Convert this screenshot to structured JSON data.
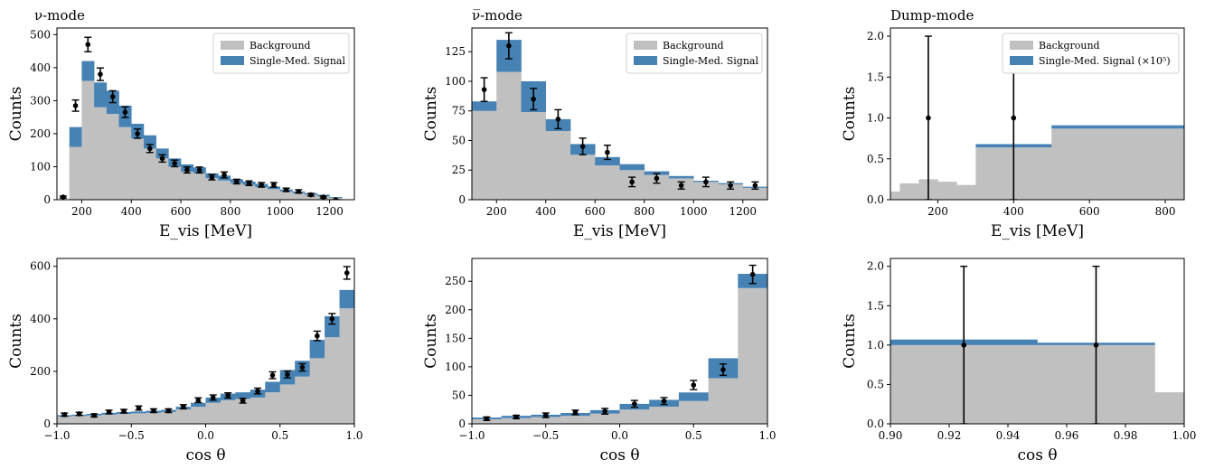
{
  "colors": {
    "background": "#c0c0c0",
    "signal": "#4682b4",
    "data": "#000000"
  },
  "legend": {
    "background": "Background",
    "signal": "Single-Med. Signal",
    "signal_dump": "Single-Med. Signal (×10⁵)"
  },
  "chart_data": [
    {
      "type": "bar",
      "title": "ν-mode",
      "xlabel": "E_vis [MeV]",
      "ylabel": "Counts",
      "xlim": [
        100,
        1300
      ],
      "ylim": [
        0,
        520
      ],
      "xticks": [
        200,
        400,
        600,
        800,
        1000,
        1200
      ],
      "yticks": [
        0,
        100,
        200,
        300,
        400,
        500
      ],
      "legend": "top-right",
      "legend_entries": [
        "Background",
        "Single-Med. Signal"
      ],
      "bin_edges": [
        150,
        200,
        250,
        300,
        350,
        400,
        450,
        500,
        550,
        600,
        650,
        700,
        750,
        800,
        850,
        900,
        950,
        1000,
        1050,
        1100,
        1150,
        1200,
        1250,
        1300
      ],
      "background": [
        160,
        360,
        280,
        260,
        220,
        185,
        155,
        125,
        100,
        85,
        80,
        65,
        58,
        50,
        45,
        38,
        32,
        25,
        20,
        15,
        10,
        5,
        0
      ],
      "signal": [
        60,
        60,
        75,
        70,
        65,
        45,
        40,
        30,
        25,
        22,
        18,
        15,
        15,
        12,
        10,
        10,
        8,
        6,
        5,
        5,
        5,
        3,
        0
      ],
      "data_x": [
        125,
        175,
        225,
        275,
        325,
        375,
        425,
        475,
        525,
        575,
        625,
        675,
        725,
        775,
        825,
        875,
        925,
        975,
        1025,
        1075,
        1125,
        1175,
        1225
      ],
      "data_y": [
        8,
        285,
        470,
        380,
        312,
        265,
        200,
        155,
        125,
        110,
        90,
        90,
        68,
        75,
        55,
        50,
        45,
        45,
        30,
        25,
        15,
        8,
        0
      ],
      "data_err": [
        3,
        17,
        22,
        19,
        18,
        16,
        14,
        12,
        11,
        10,
        9,
        9,
        8,
        9,
        7,
        7,
        7,
        7,
        5,
        5,
        4,
        3,
        0
      ]
    },
    {
      "type": "bar",
      "title": "ν̅-mode",
      "xlabel": "E_vis [MeV]",
      "ylabel": "Counts",
      "xlim": [
        100,
        1300
      ],
      "ylim": [
        0,
        145
      ],
      "xticks": [
        200,
        400,
        600,
        800,
        1000,
        1200
      ],
      "yticks": [
        0,
        25,
        50,
        75,
        100,
        125
      ],
      "legend": "top-right",
      "legend_entries": [
        "Background",
        "Single-Med. Signal"
      ],
      "bin_edges": [
        100,
        200,
        300,
        400,
        500,
        600,
        700,
        800,
        900,
        1000,
        1100,
        1200,
        1300
      ],
      "background": [
        75,
        108,
        74,
        58,
        38,
        29,
        25,
        21,
        18,
        15,
        13,
        10
      ],
      "signal": [
        8,
        27,
        26,
        10,
        9,
        7,
        5,
        3,
        2,
        1,
        1,
        1
      ],
      "data_x": [
        150,
        250,
        350,
        450,
        550,
        650,
        750,
        850,
        950,
        1050,
        1150,
        1250
      ],
      "data_y": [
        93,
        130,
        85,
        68,
        45,
        40,
        15,
        18,
        12,
        15,
        12,
        12
      ],
      "data_err": [
        10,
        11,
        9,
        8,
        7,
        6,
        4,
        4,
        3,
        4,
        3,
        3
      ]
    },
    {
      "type": "bar",
      "title": "Dump-mode",
      "xlabel": "E_vis [MeV]",
      "ylabel": "Counts",
      "xlim": [
        75,
        850
      ],
      "ylim": [
        0,
        2.1
      ],
      "xticks": [
        200,
        400,
        600,
        800
      ],
      "yticks": [
        0.0,
        0.5,
        1.0,
        1.5,
        2.0
      ],
      "legend": "top-right",
      "legend_entries": [
        "Background",
        "Single-Med. Signal (×10⁵)"
      ],
      "bin_edges": [
        75,
        100,
        150,
        200,
        250,
        300,
        500,
        850
      ],
      "background": [
        0.1,
        0.2,
        0.25,
        0.22,
        0.18,
        0.64,
        0.87
      ],
      "signal": [
        0,
        0,
        0,
        0,
        0,
        0.04,
        0.04
      ],
      "data_x": [
        175,
        400
      ],
      "data_y": [
        1.0,
        1.0
      ],
      "data_err_low": [
        1.0,
        1.0
      ],
      "data_err_high": [
        1.0,
        1.0
      ]
    },
    {
      "type": "bar",
      "xlabel": "cos θ",
      "ylabel": "Counts",
      "xlim": [
        -1.0,
        1.0
      ],
      "ylim": [
        0,
        630
      ],
      "xticks": [
        -1.0,
        -0.5,
        0.0,
        0.5,
        1.0
      ],
      "yticks": [
        0,
        200,
        400,
        600
      ],
      "bin_edges": [
        -1.0,
        -0.9,
        -0.8,
        -0.7,
        -0.6,
        -0.5,
        -0.4,
        -0.3,
        -0.2,
        -0.1,
        0.0,
        0.1,
        0.2,
        0.3,
        0.4,
        0.5,
        0.6,
        0.7,
        0.8,
        0.9,
        1.0
      ],
      "background": [
        28,
        30,
        32,
        35,
        38,
        40,
        42,
        45,
        55,
        65,
        80,
        90,
        95,
        100,
        120,
        150,
        180,
        250,
        330,
        440
      ],
      "signal": [
        5,
        5,
        6,
        7,
        7,
        7,
        8,
        8,
        10,
        15,
        20,
        25,
        25,
        30,
        40,
        55,
        60,
        70,
        80,
        70
      ],
      "data_x": [
        -0.95,
        -0.85,
        -0.75,
        -0.65,
        -0.55,
        -0.45,
        -0.35,
        -0.25,
        -0.15,
        -0.05,
        0.05,
        0.15,
        0.25,
        0.35,
        0.45,
        0.55,
        0.65,
        0.75,
        0.85,
        0.95
      ],
      "data_y": [
        35,
        38,
        32,
        45,
        48,
        60,
        50,
        50,
        65,
        90,
        100,
        108,
        88,
        125,
        185,
        188,
        215,
        335,
        400,
        575
      ],
      "data_err": [
        6,
        6,
        6,
        7,
        7,
        8,
        7,
        7,
        8,
        9,
        10,
        10,
        9,
        11,
        13,
        13,
        14,
        18,
        20,
        24
      ]
    },
    {
      "type": "bar",
      "xlabel": "cos θ",
      "ylabel": "Counts",
      "xlim": [
        -1.0,
        1.0
      ],
      "ylim": [
        0,
        290
      ],
      "xticks": [
        -1.0,
        -0.5,
        0.0,
        0.5,
        1.0
      ],
      "yticks": [
        0,
        50,
        100,
        150,
        200,
        250
      ],
      "bin_edges": [
        -1.0,
        -0.8,
        -0.6,
        -0.4,
        -0.2,
        0.0,
        0.2,
        0.4,
        0.6,
        0.8,
        1.0
      ],
      "background": [
        8,
        10,
        12,
        14,
        18,
        25,
        30,
        40,
        80,
        238
      ],
      "signal": [
        3,
        4,
        4,
        5,
        6,
        10,
        12,
        15,
        35,
        25
      ],
      "data_x": [
        -0.9,
        -0.7,
        -0.5,
        -0.3,
        -0.1,
        0.1,
        0.3,
        0.5,
        0.7,
        0.9
      ],
      "data_y": [
        9,
        12,
        15,
        20,
        22,
        35,
        40,
        68,
        95,
        262
      ],
      "data_err": [
        3,
        3,
        4,
        4,
        5,
        6,
        6,
        8,
        10,
        16
      ]
    },
    {
      "type": "bar",
      "xlabel": "cos θ",
      "ylabel": "Counts",
      "xlim": [
        0.9,
        1.0
      ],
      "ylim": [
        0,
        2.1
      ],
      "xticks": [
        0.9,
        0.92,
        0.94,
        0.96,
        0.98,
        1.0
      ],
      "yticks": [
        0.0,
        0.5,
        1.0,
        1.5,
        2.0
      ],
      "bin_edges": [
        0.9,
        0.95,
        0.99,
        1.0
      ],
      "background": [
        1.0,
        1.0,
        0.4
      ],
      "signal": [
        0.07,
        0.03,
        0
      ],
      "data_x": [
        0.925,
        0.97
      ],
      "data_y": [
        1.0,
        1.0
      ],
      "data_err_low": [
        1.0,
        1.0
      ],
      "data_err_high": [
        1.0,
        1.0
      ]
    }
  ]
}
